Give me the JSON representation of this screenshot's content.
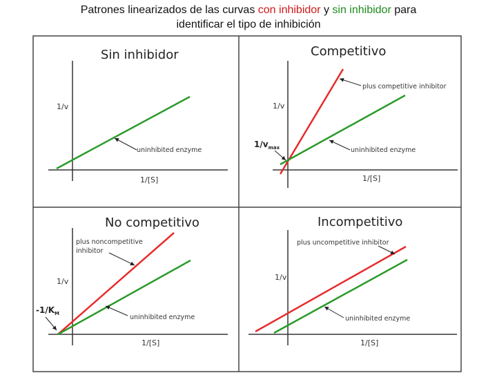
{
  "title": {
    "part1": "Patrones linearizados de las curvas ",
    "con_inhibidor": "con inhibidor",
    "part2": " y ",
    "sin_inhibidor": "sin inhibidor",
    "part3": " para",
    "line2": "identificar el tipo de inhibición"
  },
  "panels": {
    "sin": {
      "title": "Sin inhibidor",
      "ylabel": "1/v",
      "xlabel": "1/[S]",
      "green_note": "uninhibited enzyme"
    },
    "competitivo": {
      "title": "Competitivo",
      "ylabel": "1/v",
      "xlabel": "1/[S]",
      "red_note": "plus competitive inhibitor",
      "green_note": "uninhibited enzyme",
      "intercept_label": "1/v",
      "intercept_sub": "max"
    },
    "no_competitivo": {
      "title": "No competitivo",
      "ylabel": "1/v",
      "xlabel": "1/[S]",
      "red_note_line1": "plus noncompetitive",
      "red_note_line2": "inhibitor",
      "green_note": "uninhibited enzyme",
      "intercept_label": "-1/K",
      "intercept_sub": "M"
    },
    "incompetitivo": {
      "title": "Incompetitivo",
      "ylabel": "1/v",
      "xlabel": "1/[S]",
      "red_note": "plus uncompetitive inhibitor",
      "green_note": "uninhibited enzyme"
    }
  },
  "colors": {
    "inhibited": "#e82a2a",
    "uninhibited": "#2a9a2a",
    "title_red": "#d01818",
    "title_green": "#1d8a1d"
  }
}
